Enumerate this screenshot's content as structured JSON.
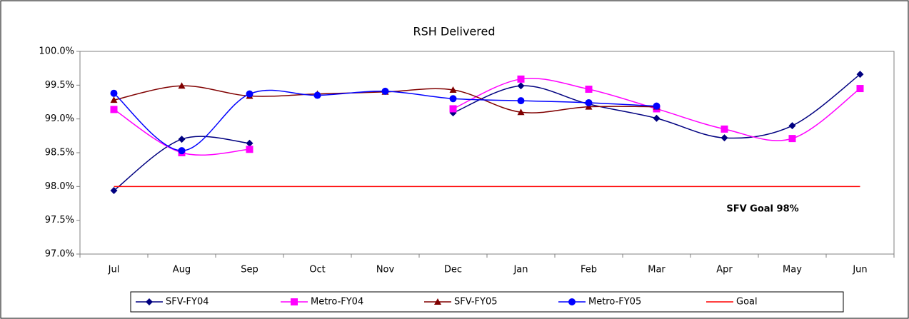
{
  "chart_data": {
    "type": "line",
    "title": "RSH Delivered",
    "categories": [
      "Jul",
      "Aug",
      "Sep",
      "Oct",
      "Nov",
      "Dec",
      "Jan",
      "Feb",
      "Mar",
      "Apr",
      "May",
      "Jun"
    ],
    "series": [
      {
        "name": "SFV-FY04",
        "color": "#000080",
        "marker": "diamond",
        "values": [
          97.94,
          98.7,
          98.64,
          null,
          null,
          99.09,
          99.49,
          99.22,
          99.01,
          98.72,
          98.9,
          99.66
        ]
      },
      {
        "name": "Metro-FY04",
        "color": "#ff00ff",
        "marker": "square",
        "values": [
          99.14,
          98.5,
          98.55,
          null,
          null,
          99.15,
          99.59,
          99.44,
          99.15,
          98.85,
          98.71,
          99.45
        ]
      },
      {
        "name": "SFV-FY05",
        "color": "#800000",
        "marker": "triangle",
        "values": [
          99.28,
          99.49,
          99.34,
          99.37,
          99.4,
          99.43,
          99.1,
          99.18,
          99.18,
          null,
          null,
          null
        ]
      },
      {
        "name": "Metro-FY05",
        "color": "#0000ff",
        "marker": "circle",
        "values": [
          99.38,
          98.53,
          99.37,
          99.35,
          99.41,
          99.3,
          99.27,
          99.24,
          99.19,
          null,
          null,
          null
        ]
      },
      {
        "name": "Goal",
        "color": "#ff0000",
        "values": [
          98,
          98,
          98,
          98,
          98,
          98,
          98,
          98,
          98,
          98,
          98,
          98
        ]
      }
    ],
    "annotation": "SFV Goal 98%",
    "ylim": [
      97,
      100
    ],
    "yticks": [
      {
        "value": 97,
        "label": "97.0%"
      },
      {
        "value": 97.5,
        "label": "97.5%"
      },
      {
        "value": 98,
        "label": "98.0%"
      },
      {
        "value": 98.5,
        "label": "98.5%"
      },
      {
        "value": 99,
        "label": "99.0%"
      },
      {
        "value": 99.5,
        "label": "99.5%"
      },
      {
        "value": 100,
        "label": "100.0%"
      }
    ],
    "legend": "bottom"
  }
}
